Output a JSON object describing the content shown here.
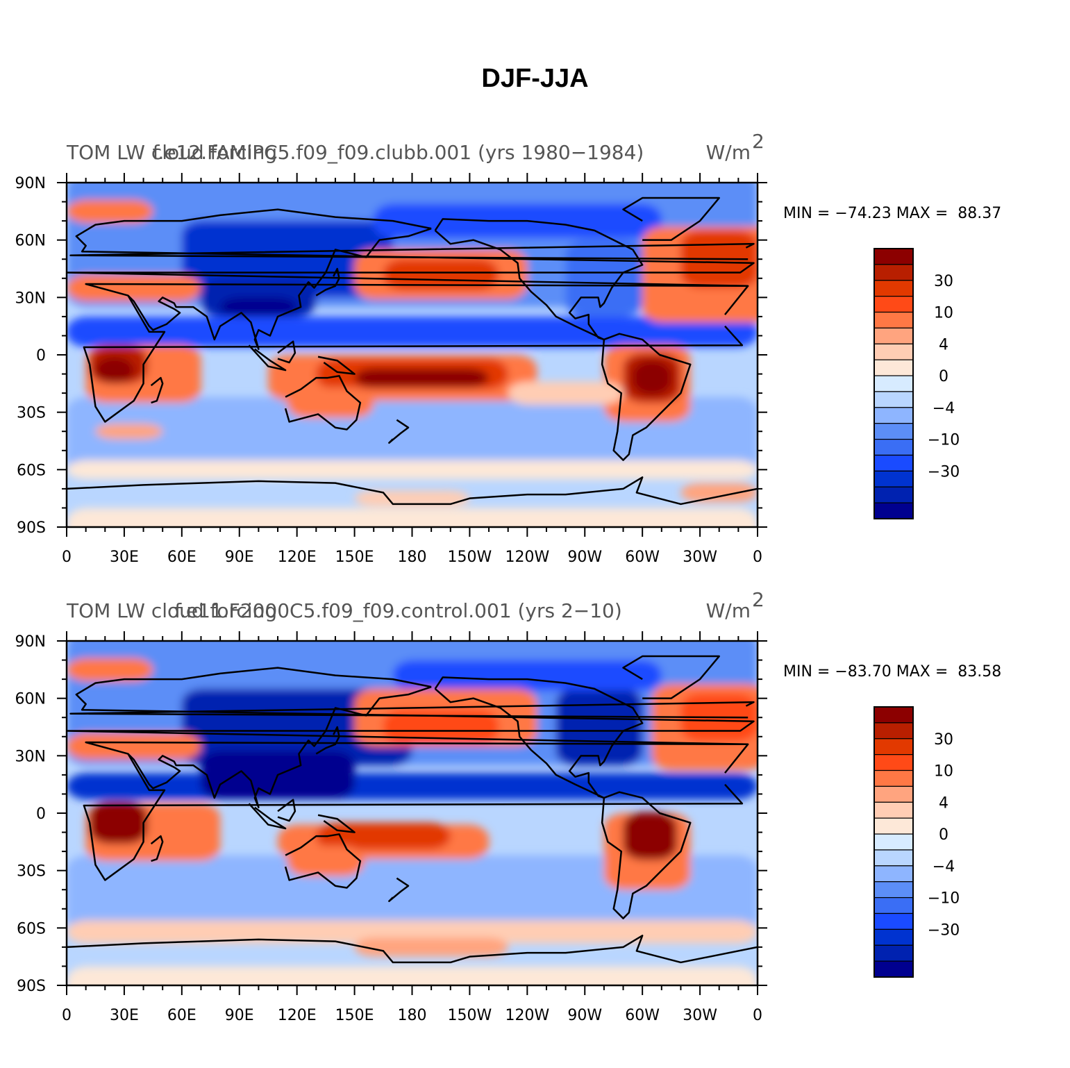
{
  "title": "DJF-JJA",
  "colors": {
    "levels": [
      "#00008f",
      "#0022b0",
      "#0033d0",
      "#1a4bff",
      "#3a6ef5",
      "#5c8ef7",
      "#8eb5ff",
      "#b9d6ff",
      "#d7ebff",
      "#fde8d8",
      "#ffcdb4",
      "#ffa47f",
      "#ff7845",
      "#ff4a17",
      "#e23900",
      "#b81f00",
      "#8c0000"
    ]
  },
  "colorbar_labels": [
    "30",
    "10",
    "4",
    "0",
    "−4",
    "−10",
    "−30"
  ],
  "lat_labels": [
    "90N",
    "60N",
    "30N",
    "0",
    "30S",
    "60S",
    "90S"
  ],
  "lon_labels": [
    "0",
    "30E",
    "60E",
    "90E",
    "120E",
    "150E",
    "180",
    "150W",
    "120W",
    "90W",
    "60W",
    "30W",
    "0"
  ],
  "panels": [
    {
      "left_text": "TOM LW cloud forcing",
      "center_text": "f.e12.FAMIPC5.f09_f09.clubb.001 (yrs 1980−1984)",
      "units": "W/m",
      "units_sup": "2",
      "min_label": "MIN = ",
      "min_value": "−74.23",
      "max_label": " MAX =  ",
      "max_value": "88.37"
    },
    {
      "left_text": "TOM LW cloud forcing",
      "center_text": "f.e11.F2000C5.f09_f09.control.001 (yrs 2−10)",
      "units": "W/m",
      "units_sup": "2",
      "min_label": "MIN = ",
      "min_value": "−83.70",
      "max_label": " MAX =  ",
      "max_value": "83.58"
    }
  ]
}
